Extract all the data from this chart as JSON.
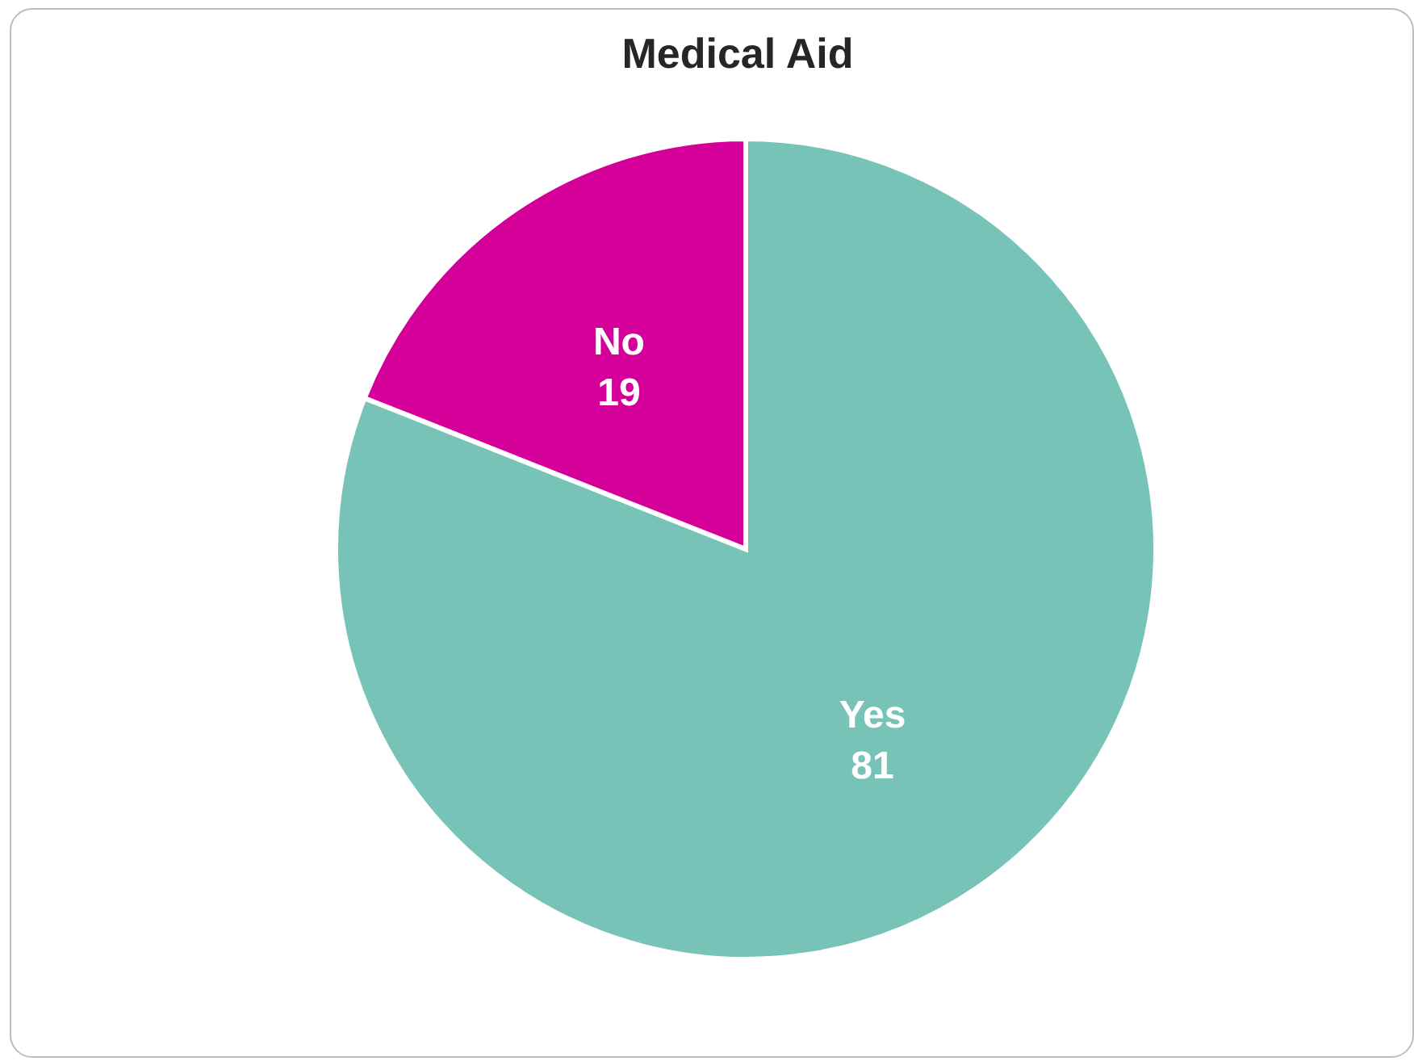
{
  "chart_data": {
    "type": "pie",
    "title": "Medical Aid",
    "categories": [
      "Yes",
      "No"
    ],
    "values": [
      81,
      19
    ],
    "colors": [
      "#77c3b7",
      "#d5009a"
    ],
    "data_labels": true
  }
}
